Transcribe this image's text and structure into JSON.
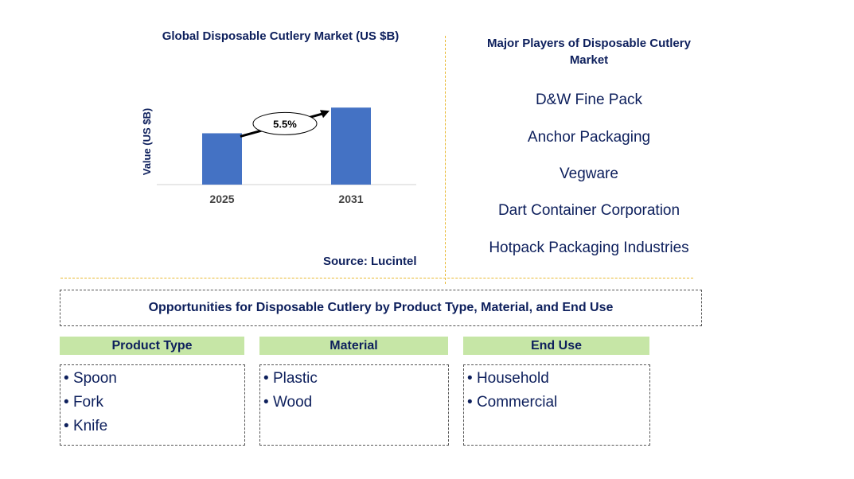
{
  "chart_data": {
    "type": "bar",
    "title": "Global Disposable Cutlery Market (US $B)",
    "ylabel": "Value (US $B)",
    "categories": [
      "2025",
      "2031"
    ],
    "values": [
      1.0,
      1.5
    ],
    "ylim": [
      0,
      1.55
    ],
    "annotation": "5.5%",
    "color": "#4472c4",
    "grid": false
  },
  "source": "Source: Lucintel",
  "players": {
    "title": "Major Players of Disposable Cutlery Market",
    "items": [
      "D&W Fine Pack",
      "Anchor Packaging",
      "Vegware",
      "Dart Container Corporation",
      "Hotpack Packaging Industries"
    ]
  },
  "opportunities": {
    "title": "Opportunities for Disposable Cutlery by Product Type, Material, and End Use",
    "segments": [
      {
        "header": "Product Type",
        "items": [
          "Spoon",
          "Fork",
          "Knife"
        ]
      },
      {
        "header": "Material",
        "items": [
          "Plastic",
          "Wood"
        ]
      },
      {
        "header": "End Use",
        "items": [
          "Household",
          "Commercial"
        ]
      }
    ]
  },
  "colors": {
    "text": "#0d1f5c",
    "bar": "#4472c4",
    "segment_header": "#c6e6a6",
    "divider": "#e8b830"
  }
}
